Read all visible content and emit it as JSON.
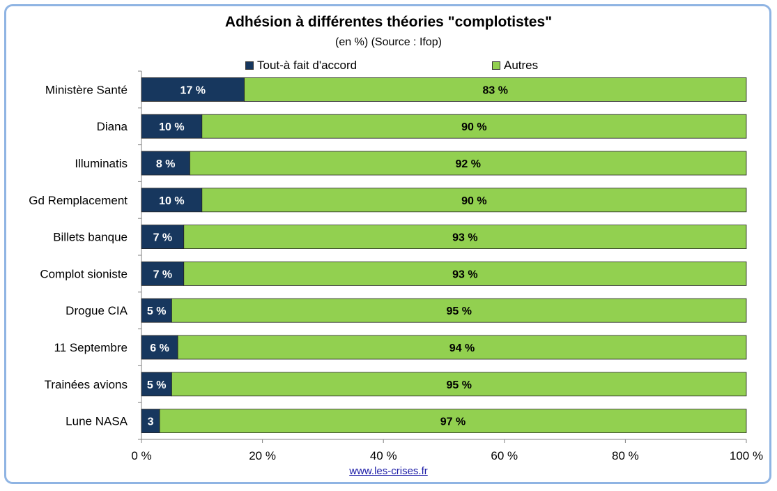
{
  "title": "Adhésion à différentes théories \"complotistes\"",
  "subtitle": "(en %) (Source : Ifop)",
  "source_link": "www.les-crises.fr",
  "colors": {
    "agree": "#17375e",
    "others": "#92d050",
    "frame": "#8fb4e3"
  },
  "chart_data": {
    "type": "bar",
    "orientation": "horizontal",
    "stacked": true,
    "percent_stacked": true,
    "title": "Adhésion à différentes théories \"complotistes\"",
    "subtitle": "(en %) (Source : Ifop)",
    "categories": [
      "Ministère Santé",
      "Diana",
      "Illuminatis",
      "Gd Remplacement",
      "Billets banque",
      "Complot sioniste",
      "Drogue CIA",
      "11 Septembre",
      "Trainées avions",
      "Lune NASA"
    ],
    "series": [
      {
        "name": "Tout-à fait d'accord",
        "values": [
          17,
          10,
          8,
          10,
          7,
          7,
          5,
          6,
          5,
          3
        ],
        "labels": [
          "17 %",
          "10 %",
          "8 %",
          "10 %",
          "7 %",
          "7 %",
          "5 %",
          "6 %",
          "5 %",
          "3"
        ]
      },
      {
        "name": "Autres",
        "values": [
          83,
          90,
          92,
          90,
          93,
          93,
          95,
          94,
          95,
          97
        ],
        "labels": [
          "83 %",
          "90 %",
          "92 %",
          "90 %",
          "93 %",
          "93 %",
          "95 %",
          "94 %",
          "95 %",
          "97 %"
        ]
      }
    ],
    "xlim": [
      0,
      100
    ],
    "xticks": [
      "0 %",
      "20 %",
      "40 %",
      "60 %",
      "80 %",
      "100 %"
    ],
    "legend_position": "top",
    "grid": false
  }
}
